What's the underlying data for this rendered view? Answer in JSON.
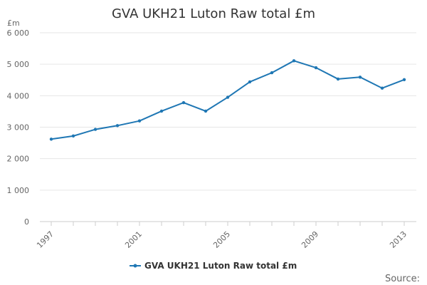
{
  "chart_data": {
    "type": "line",
    "title": "GVA UKH21 Luton Raw total £m",
    "y_unit_label": "£m",
    "ylim": [
      0,
      6000
    ],
    "y_ticks": [
      0,
      1000,
      2000,
      3000,
      4000,
      5000,
      6000
    ],
    "y_tick_labels": [
      "0",
      "1 000",
      "2 000",
      "3 000",
      "4 000",
      "5 000",
      "6 000"
    ],
    "x": [
      1997,
      1998,
      1999,
      2000,
      2001,
      2002,
      2003,
      2004,
      2005,
      2006,
      2007,
      2008,
      2009,
      2010,
      2011,
      2012,
      2013
    ],
    "x_tick_labels": [
      "1997",
      "2001",
      "2005",
      "2009",
      "2013"
    ],
    "grid": true,
    "legend_position": "bottom",
    "series": [
      {
        "name": "GVA UKH21 Luton Raw total £m",
        "color": "#1f77b4",
        "values": [
          2620,
          2720,
          2930,
          3050,
          3200,
          3510,
          3780,
          3510,
          3950,
          4440,
          4730,
          5110,
          4890,
          4530,
          4590,
          4240,
          4510
        ]
      }
    ],
    "source_label": "Source:"
  }
}
